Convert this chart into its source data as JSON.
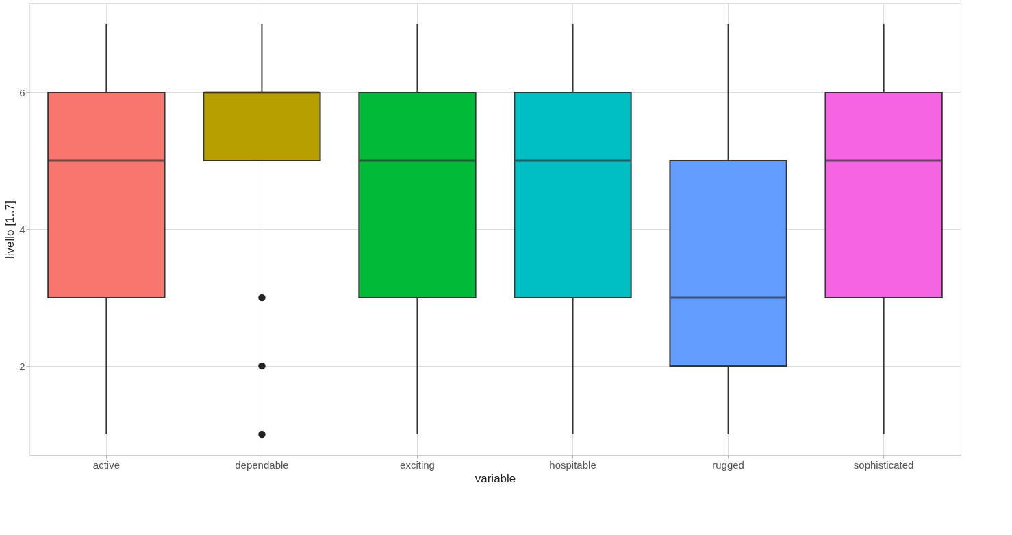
{
  "chart_data": {
    "type": "box",
    "xlabel": "variable",
    "ylabel": "livello [1..7]",
    "categories": [
      "active",
      "dependable",
      "exciting",
      "hospitable",
      "rugged",
      "sophisticated"
    ],
    "colors": [
      "#f8766d",
      "#b79f00",
      "#00ba38",
      "#00bfc4",
      "#619cff",
      "#f564e3"
    ],
    "boxes": [
      {
        "low": 1,
        "q1": 3,
        "median": 5,
        "q3": 6,
        "high": 7
      },
      {
        "low": 5,
        "q1": 5,
        "median": 6,
        "q3": 6,
        "high": 7,
        "outliers": [
          3,
          2,
          1
        ]
      },
      {
        "low": 1,
        "q1": 3,
        "median": 5,
        "q3": 6,
        "high": 7
      },
      {
        "low": 1,
        "q1": 3,
        "median": 5,
        "q3": 6,
        "high": 7
      },
      {
        "low": 1,
        "q1": 2,
        "median": 3,
        "q3": 5,
        "high": 7
      },
      {
        "low": 1,
        "q1": 3,
        "median": 5,
        "q3": 6,
        "high": 7
      }
    ],
    "ylim": [
      0.7,
      7.3
    ],
    "yticks": [
      2,
      4,
      6
    ],
    "grid": true,
    "legend": false
  }
}
